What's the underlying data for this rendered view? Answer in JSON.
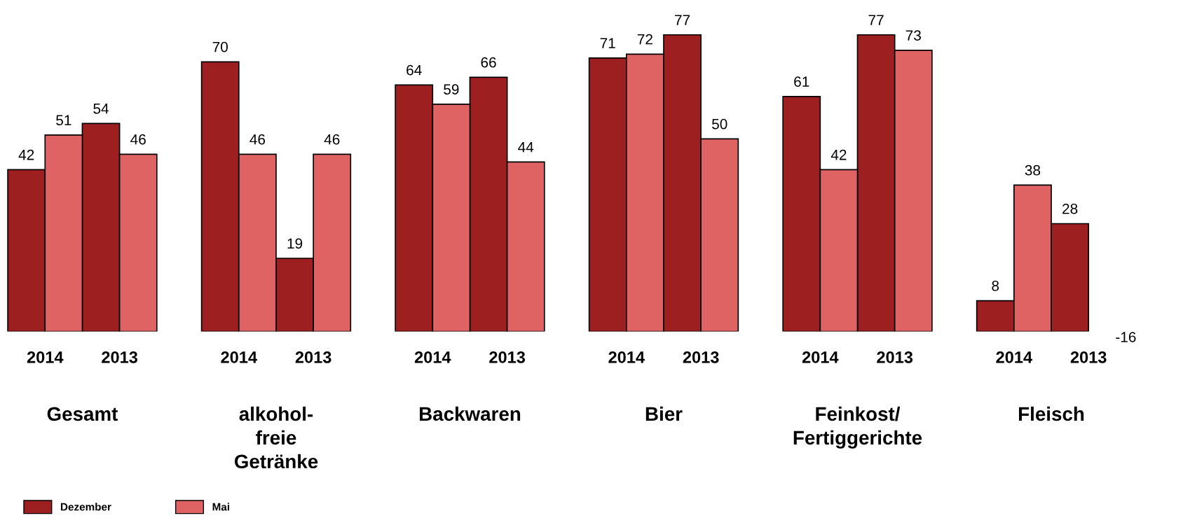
{
  "chart_data": {
    "type": "bar",
    "categories": [
      "2014",
      "2013",
      "2014",
      "2013",
      "2014",
      "2013",
      "2014",
      "2013",
      "2014",
      "2013",
      "2014",
      "2013"
    ],
    "series": [
      {
        "name": "Dezember",
        "color": "#9e1f20",
        "values": [
          42,
          54,
          70,
          19,
          64,
          66,
          71,
          77,
          61,
          77,
          8,
          28
        ],
        "value_labels": [
          "42",
          "54",
          "70",
          "19",
          "64",
          "66",
          "71",
          "77",
          "61",
          "77",
          "8",
          "28"
        ]
      },
      {
        "name": "Mai",
        "color": "#e06363",
        "values": [
          51,
          46,
          46,
          46,
          59,
          44,
          72,
          50,
          42,
          73,
          38,
          null
        ],
        "value_labels": [
          "51",
          "46",
          "46",
          "46",
          "59",
          "44",
          "72",
          "50",
          "42",
          "73",
          "38",
          "-16"
        ]
      }
    ],
    "annotations": [
      "Gesamt",
      "alkohol-\nfreie\nGetränke",
      "Backwaren",
      "Bier",
      "Feinkost/\nFertiggerichte",
      "Fleisch"
    ],
    "legend": "bottom left",
    "grid": false
  }
}
